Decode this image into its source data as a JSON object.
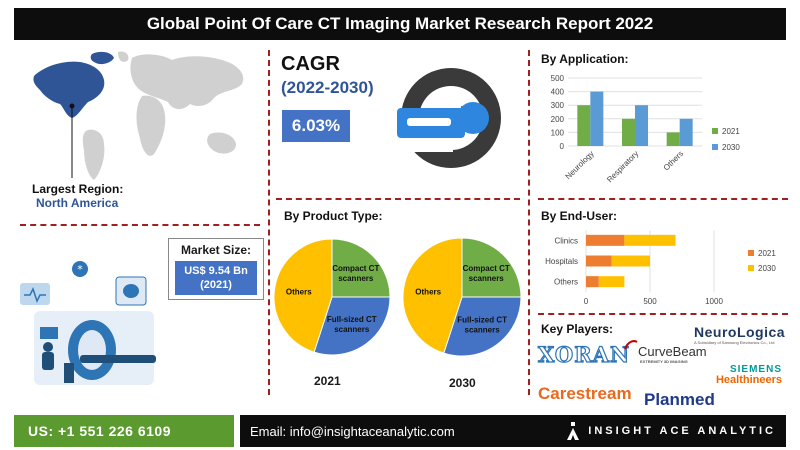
{
  "title": "Global Point Of Care CT Imaging Market Research Report 2022",
  "largest_region": {
    "label": "Largest Region:",
    "value": "North America"
  },
  "market_size": {
    "label": "Market Size:",
    "value_line1": "US$ 9.54 Bn",
    "value_line2": "(2021)"
  },
  "cagr": {
    "label": "CAGR",
    "years": "(2022-2030)",
    "value": "6.03%"
  },
  "sections": {
    "application": "By Application:",
    "product": "By Product Type:",
    "end_user": "By End-User:",
    "key_players": "Key Players:"
  },
  "colors": {
    "series_2021": "#70ad47",
    "series_2030": "#5b9bd5",
    "end_2021": "#ed7d31",
    "end_2030": "#ffc000",
    "pie_others": "#ffc000",
    "pie_compact": "#70ad47",
    "pie_full": "#4472c4",
    "accent_blue": "#4472c4",
    "footer_green": "#5a9a2e"
  },
  "chart_data": [
    {
      "type": "bar",
      "title": "By Application:",
      "categories": [
        "Neurology",
        "Respiratory",
        "Others"
      ],
      "series": [
        {
          "name": "2021",
          "values": [
            300,
            200,
            100
          ]
        },
        {
          "name": "2030",
          "values": [
            400,
            300,
            200
          ]
        }
      ],
      "ylim": [
        0,
        500
      ],
      "yticks": [
        "0",
        "100",
        "200",
        "300",
        "400",
        "500"
      ],
      "legend": "right",
      "grid": true
    },
    {
      "type": "bar",
      "orientation": "horizontal",
      "stacked": true,
      "title": "By End-User:",
      "categories": [
        "Clinics",
        "Hospitals",
        "Others"
      ],
      "series": [
        {
          "name": "2021",
          "values": [
            300,
            200,
            100
          ]
        },
        {
          "name": "2030",
          "values": [
            400,
            300,
            200
          ]
        }
      ],
      "xlim": [
        0,
        1000
      ],
      "xticks": [
        "0",
        "500",
        "1000"
      ],
      "legend": "right",
      "grid": true
    },
    {
      "type": "pie",
      "title": "2021",
      "labels": [
        "Compact CT scanners",
        "Full-sized CT scanners",
        "Others"
      ],
      "values": [
        25,
        30,
        45
      ]
    },
    {
      "type": "pie",
      "title": "2030",
      "labels": [
        "Compact CT scanners",
        "Full-sized CT scanners",
        "Others"
      ],
      "values": [
        25,
        30,
        45
      ]
    }
  ],
  "pie_labels": {
    "compact_l1": "Compact CT",
    "compact_l2": "scanners",
    "full_l1": "Full-sized CT",
    "full_l2": "scanners",
    "others": "Others"
  },
  "key_players": [
    "XORAN",
    "CurveBeam",
    "NeuroLogica",
    "SIEMENS",
    "Healthineers",
    "Carestream",
    "Planmed"
  ],
  "curvebeam_tag": "EXTREMITY 3D IMAGING",
  "neurologica_tag": "A Subsidiary of Samsung Electronics Co., Ltd",
  "footer": {
    "phone": "US: +1 551 226 6109",
    "email": "Email: info@insightaceanalytic.com",
    "brand": "INSIGHT ACE ANALYTIC"
  }
}
